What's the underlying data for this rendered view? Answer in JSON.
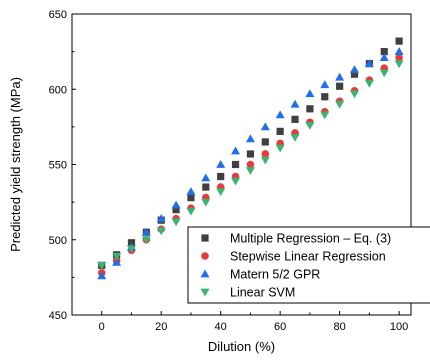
{
  "chart_data": {
    "type": "scatter",
    "xlabel": "Dilution (%)",
    "ylabel": "Predicted yield strength (MPa)",
    "xlim": [
      -10,
      104
    ],
    "ylim": [
      450,
      650
    ],
    "xticks": [
      0,
      20,
      40,
      60,
      80,
      100
    ],
    "yticks": [
      450,
      500,
      550,
      600,
      650
    ],
    "legend_position": "bottom-right",
    "x": [
      0,
      5,
      10,
      15,
      20,
      25,
      30,
      35,
      40,
      45,
      50,
      55,
      60,
      65,
      70,
      75,
      80,
      85,
      90,
      95,
      100
    ],
    "series": [
      {
        "name": "Multiple Regression – Eq. (3)",
        "marker": "square",
        "color": "#404040",
        "values": [
          483,
          490,
          498,
          505,
          513,
          520,
          528,
          535,
          542,
          550,
          557,
          565,
          572,
          580,
          587,
          595,
          602,
          610,
          617,
          625,
          632
        ]
      },
      {
        "name": "Stepwise Linear Regression",
        "marker": "circle",
        "color": "#e83a3a",
        "values": [
          478,
          486,
          493,
          500,
          507,
          514,
          521,
          528,
          535,
          542,
          550,
          557,
          564,
          571,
          578,
          585,
          592,
          599,
          606,
          614,
          621
        ]
      },
      {
        "name": "Matern 5/2 GPR",
        "marker": "triangle-up",
        "color": "#1f6fe6",
        "values": [
          476,
          485,
          495,
          505,
          514,
          523,
          532,
          541,
          550,
          559,
          567,
          575,
          583,
          590,
          597,
          603,
          608,
          613,
          617,
          621,
          625
        ]
      },
      {
        "name": "Linear SVM",
        "marker": "triangle-down",
        "color": "#3cb371",
        "values": [
          483,
          489,
          494,
          500,
          506,
          512,
          519,
          525,
          532,
          539,
          546,
          553,
          561,
          568,
          576,
          583,
          590,
          597,
          604,
          611,
          617
        ]
      }
    ]
  }
}
